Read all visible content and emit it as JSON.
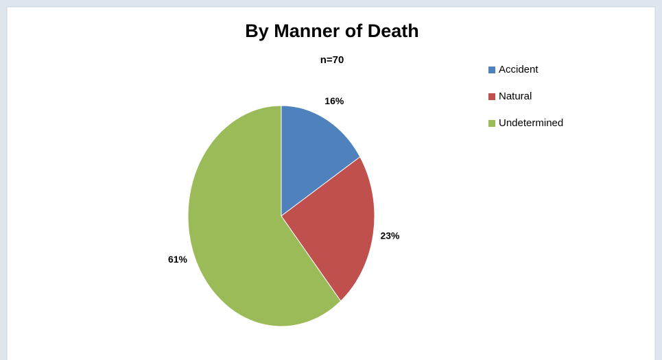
{
  "chart_data": {
    "type": "pie",
    "title": "By Manner of Death",
    "subtitle": "n=70",
    "categories": [
      "Accident",
      "Natural",
      "Undetermined"
    ],
    "values": [
      16,
      23,
      61
    ],
    "value_labels": [
      "16%",
      "23%",
      "61%"
    ],
    "colors": [
      "#4f81bd",
      "#c0504d",
      "#9bbb59"
    ],
    "legend": "right"
  }
}
